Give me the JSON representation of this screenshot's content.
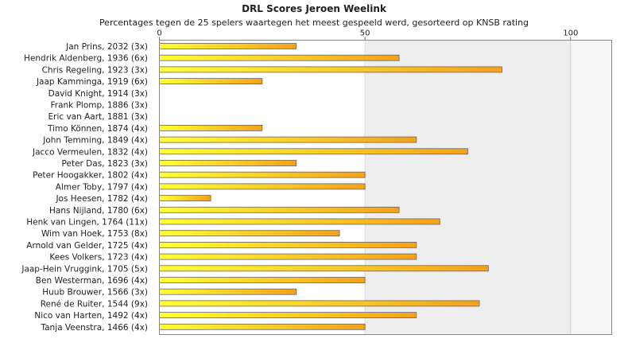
{
  "chart_data": {
    "type": "bar",
    "orientation": "horizontal",
    "title": "DRL Scores Jeroen Weelink",
    "subtitle": "Percentages tegen de 25 spelers waartegen het meest gespeeld werd, gesorteerd op KNSB rating",
    "xlim": [
      0,
      110
    ],
    "xticks": [
      0,
      50,
      100
    ],
    "grid": false,
    "colors": {
      "bar_start": "#ffff33",
      "bar_end": "#f5a11a",
      "bar_border": "#666666",
      "shade": "#eeeeee"
    },
    "categories": [
      "Jan Prins, 2032 (3x)",
      "Hendrik Aldenberg, 1936 (6x)",
      "Chris Regeling, 1923 (3x)",
      "Jaap Kamminga, 1919 (6x)",
      "David Knight, 1914 (3x)",
      "Frank Plomp, 1886 (3x)",
      "Eric van Aart, 1881 (3x)",
      "Timo Können, 1874 (4x)",
      "John Temming, 1849 (4x)",
      "Jacco Vermeulen, 1832 (4x)",
      "Peter Das, 1823 (3x)",
      "Peter Hoogakker, 1802 (4x)",
      "Almer Toby, 1797 (4x)",
      "Jos Heesen, 1782 (4x)",
      "Hans Nijland, 1780 (6x)",
      "Henk van Lingen, 1764 (11x)",
      "Wim van Hoek, 1753 (8x)",
      "Arnold van Gelder, 1725 (4x)",
      "Kees Volkers, 1723 (4x)",
      "Jaap-Hein Vruggink, 1705 (5x)",
      "Ben Westerman, 1696 (4x)",
      "Huub Brouwer, 1566 (3x)",
      "René de Ruiter, 1544 (9x)",
      "Nico van Harten, 1492 (4x)",
      "Tanja Veenstra, 1466 (4x)"
    ],
    "values": [
      33.3,
      58.3,
      83.3,
      25,
      0,
      0,
      0,
      25,
      62.5,
      75,
      33.3,
      50,
      50,
      12.5,
      58.3,
      68.2,
      43.8,
      62.5,
      62.5,
      80,
      50,
      33.3,
      77.8,
      62.5,
      50
    ]
  }
}
